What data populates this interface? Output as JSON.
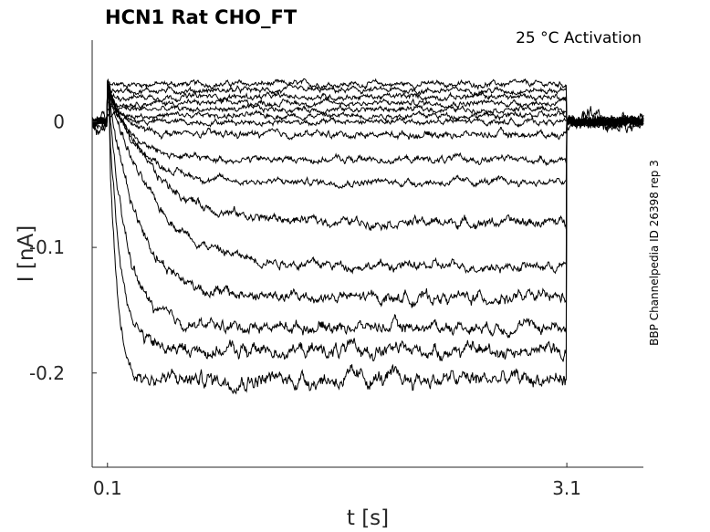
{
  "chart_data": {
    "type": "line",
    "title": "HCN1  Rat  CHO_FT",
    "annotation": "25 °C  Activation",
    "side_label": "BBP Channelpedia ID 26398 rep 3",
    "xlabel": "t [s]",
    "ylabel": "I [nA]",
    "xlim": [
      0,
      3.6
    ],
    "ylim": [
      -0.275,
      0.065
    ],
    "x_ticks": [
      {
        "value": 0.1,
        "label": "0.1"
      },
      {
        "value": 3.1,
        "label": "3.1"
      }
    ],
    "y_ticks": [
      {
        "value": 0,
        "label": "0"
      },
      {
        "value": -0.1,
        "label": "-0.1"
      },
      {
        "value": -0.2,
        "label": "-0.2"
      }
    ],
    "step_on": 0.1,
    "step_off": 3.1,
    "series": [
      {
        "steady": 0.03,
        "tau": 0.05,
        "noise": 0.0025
      },
      {
        "steady": 0.025,
        "tau": 0.05,
        "noise": 0.0025
      },
      {
        "steady": 0.02,
        "tau": 0.05,
        "noise": 0.0025
      },
      {
        "steady": 0.015,
        "tau": 0.05,
        "noise": 0.0025
      },
      {
        "steady": 0.01,
        "tau": 0.05,
        "noise": 0.0025
      },
      {
        "steady": 0.005,
        "tau": 0.05,
        "noise": 0.0025
      },
      {
        "steady": 0.0,
        "tau": 0.05,
        "noise": 0.0025
      },
      {
        "steady": -0.01,
        "tau": 0.1,
        "noise": 0.003
      },
      {
        "steady": -0.03,
        "tau": 0.15,
        "noise": 0.003
      },
      {
        "steady": -0.048,
        "tau": 0.2,
        "noise": 0.003
      },
      {
        "steady": -0.08,
        "tau": 0.3,
        "noise": 0.004
      },
      {
        "steady": -0.115,
        "tau": 0.3,
        "noise": 0.004
      },
      {
        "steady": -0.14,
        "tau": 0.2,
        "noise": 0.005
      },
      {
        "steady": -0.163,
        "tau": 0.12,
        "noise": 0.005
      },
      {
        "steady": -0.182,
        "tau": 0.08,
        "noise": 0.006
      },
      {
        "steady": -0.205,
        "tau": 0.05,
        "noise": 0.007
      }
    ]
  }
}
